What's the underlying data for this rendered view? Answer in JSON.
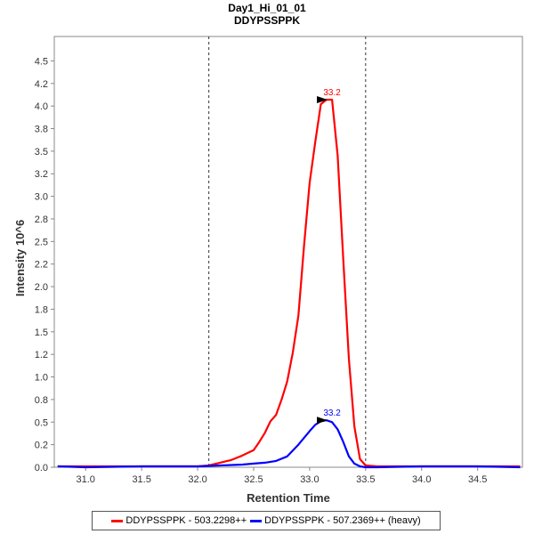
{
  "chart_data": {
    "type": "line",
    "title": "Day1_Hi_01_01",
    "subtitle": "DDYPSSPPK",
    "xlabel": "Retention Time",
    "ylabel": "Intensity 10^6",
    "xlim": [
      30.72,
      34.9
    ],
    "ylim": [
      0.0,
      4.77
    ],
    "x_ticks": [
      "31.0",
      "31.5",
      "32.0",
      "32.5",
      "33.0",
      "33.5",
      "34.0",
      "34.5"
    ],
    "y_ticks": [
      "0.0",
      "0.2",
      "0.5",
      "0.8",
      "1.0",
      "1.2",
      "1.5",
      "1.8",
      "2.0",
      "2.2",
      "2.5",
      "2.8",
      "3.0",
      "3.2",
      "3.5",
      "3.8",
      "4.0",
      "4.2",
      "4.5"
    ],
    "y_tick_values": [
      0.0,
      0.25,
      0.5,
      0.75,
      1.0,
      1.25,
      1.5,
      1.75,
      2.0,
      2.25,
      2.5,
      2.75,
      3.0,
      3.25,
      3.5,
      3.75,
      4.0,
      4.25,
      4.5
    ],
    "boundaries": [
      32.1,
      33.5
    ],
    "grid": false,
    "legend_position": "bottom",
    "series": [
      {
        "name": "DDYPSSPPK - 503.2298++",
        "color": "#ff0000",
        "peak_label": "33.2",
        "peak": [
          33.2,
          4.07
        ],
        "x": [
          30.75,
          31.0,
          31.5,
          32.0,
          32.1,
          32.2,
          32.3,
          32.4,
          32.5,
          32.55,
          32.6,
          32.65,
          32.7,
          32.75,
          32.8,
          32.85,
          32.9,
          32.95,
          33.0,
          33.05,
          33.1,
          33.15,
          33.2,
          33.25,
          33.3,
          33.35,
          33.4,
          33.45,
          33.5,
          33.6,
          34.0,
          34.5,
          34.88
        ],
        "values": [
          0.01,
          0.01,
          0.01,
          0.01,
          0.02,
          0.05,
          0.08,
          0.13,
          0.19,
          0.28,
          0.38,
          0.51,
          0.58,
          0.75,
          0.95,
          1.27,
          1.68,
          2.45,
          3.15,
          3.6,
          4.02,
          4.07,
          4.07,
          3.45,
          2.3,
          1.2,
          0.45,
          0.09,
          0.02,
          0.01,
          0.01,
          0.01,
          0.01
        ]
      },
      {
        "name": "DDYPSSPPK - 507.2369++ (heavy)",
        "color": "#0000ff",
        "peak_label": "33.2",
        "peak": [
          33.2,
          0.52
        ],
        "x": [
          30.75,
          31.0,
          31.5,
          32.0,
          32.2,
          32.4,
          32.5,
          32.6,
          32.7,
          32.8,
          32.9,
          33.0,
          33.05,
          33.1,
          33.15,
          33.2,
          33.25,
          33.3,
          33.35,
          33.4,
          33.45,
          33.5,
          33.6,
          34.0,
          34.5,
          34.88
        ],
        "values": [
          0.01,
          0.0,
          0.01,
          0.01,
          0.02,
          0.03,
          0.04,
          0.05,
          0.07,
          0.12,
          0.25,
          0.4,
          0.47,
          0.51,
          0.52,
          0.5,
          0.42,
          0.28,
          0.12,
          0.04,
          0.01,
          0.0,
          0.0,
          0.01,
          0.01,
          0.0
        ]
      }
    ]
  }
}
